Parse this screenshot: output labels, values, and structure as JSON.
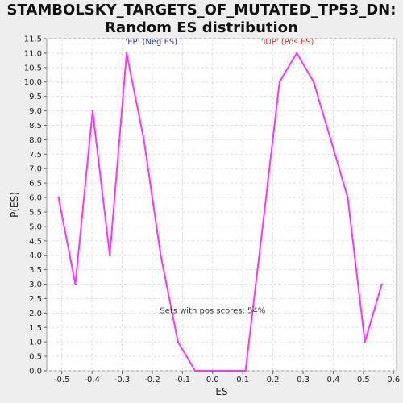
{
  "chart_data": {
    "type": "line",
    "title_line1": "STAMBOLSKY_TARGETS_OF_MUTATED_TP53_DN:",
    "title_line2": "Random ES distribution",
    "xlabel": "ES",
    "ylabel": "P(ES)",
    "xlim": [
      -0.55,
      0.61
    ],
    "ylim": [
      0,
      11.5
    ],
    "x_ticks": [
      "-0.5",
      "-0.4",
      "-0.3",
      "-0.2",
      "-0.1",
      "0.0",
      "0.1",
      "0.2",
      "0.3",
      "0.4",
      "0.5",
      "0.6"
    ],
    "y_ticks": [
      "0.0",
      "0.5",
      "1.0",
      "1.5",
      "2.0",
      "2.5",
      "3.0",
      "3.5",
      "4.0",
      "4.5",
      "5.0",
      "5.5",
      "6.0",
      "6.5",
      "7.0",
      "7.5",
      "8.0",
      "8.5",
      "9.0",
      "9.5",
      "10.0",
      "10.5",
      "11.0",
      "11.5"
    ],
    "grid": true,
    "series": [
      {
        "color": "#ff33ff",
        "x": [
          -0.511,
          -0.455,
          -0.398,
          -0.341,
          -0.285,
          -0.228,
          -0.172,
          -0.115,
          -0.058,
          -0.001,
          0.055,
          0.109,
          0.166,
          0.222,
          0.279,
          0.335,
          0.392,
          0.448,
          0.505,
          0.561
        ],
        "y": [
          6,
          3,
          9,
          4,
          11,
          8,
          4,
          1,
          0,
          0,
          0,
          0,
          5,
          10,
          11,
          10,
          8,
          6,
          1,
          3
        ]
      }
    ],
    "annotations": [
      {
        "text": "'EP' (Neg ES)",
        "x": -0.203,
        "y": 11.3,
        "color": "#3333cc"
      },
      {
        "text": "'IUP' (Pos ES)",
        "x": 0.248,
        "y": 11.3,
        "color": "#cc3333"
      },
      {
        "text": "Sets with pos scores: 54%",
        "x": 0.0,
        "y": 2.0,
        "color": "#333333"
      }
    ]
  }
}
